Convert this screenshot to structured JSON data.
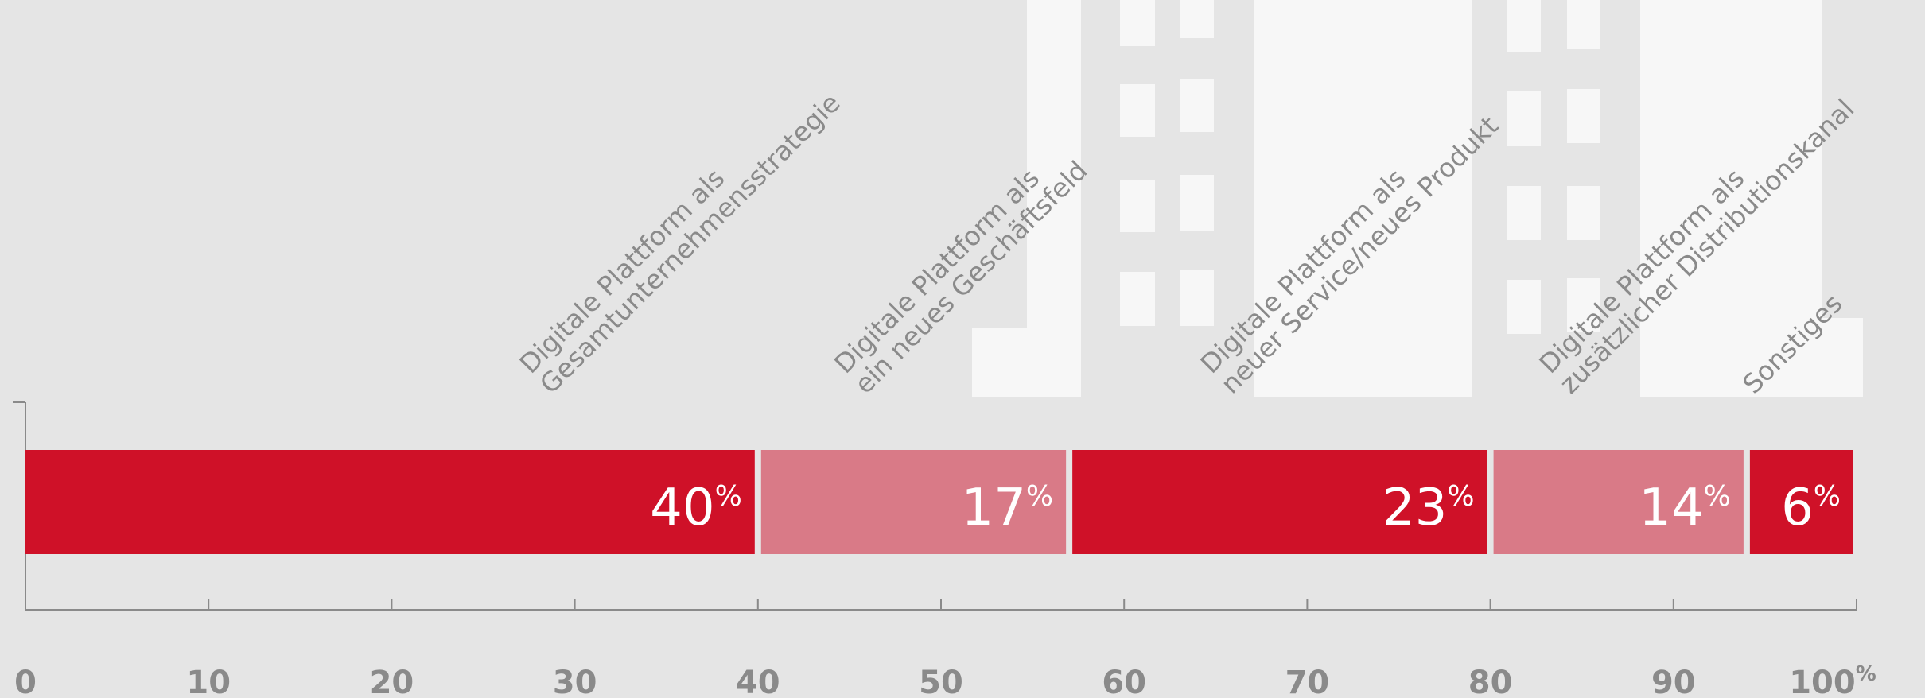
{
  "chart_data": {
    "type": "stacked-bar-horizontal",
    "series": [
      {
        "name": [
          "Digitale Plattform als",
          "Gesamtunternehmensstrategie"
        ],
        "color": "#cf1128",
        "values": [
          40
        ]
      },
      {
        "name": [
          "Digitale Plattform als",
          "ein neues Geschäftsfeld"
        ],
        "color": "#d97a87",
        "values": [
          17
        ]
      },
      {
        "name": [
          "Digitale Plattform als",
          "neuer Service/neues Produkt"
        ],
        "color": "#cf1128",
        "values": [
          23
        ]
      },
      {
        "name": [
          "Digitale Plattform als",
          "zusätzlicher Distributionskanal"
        ],
        "color": "#d97a87",
        "values": [
          14
        ]
      },
      {
        "name": [
          "Sonstiges"
        ],
        "color": "#cf1128",
        "values": [
          6
        ]
      }
    ],
    "unit": "%",
    "xlim": [
      0,
      100
    ],
    "xticks": [
      0,
      10,
      20,
      30,
      40,
      50,
      60,
      70,
      80,
      90,
      100
    ]
  }
}
